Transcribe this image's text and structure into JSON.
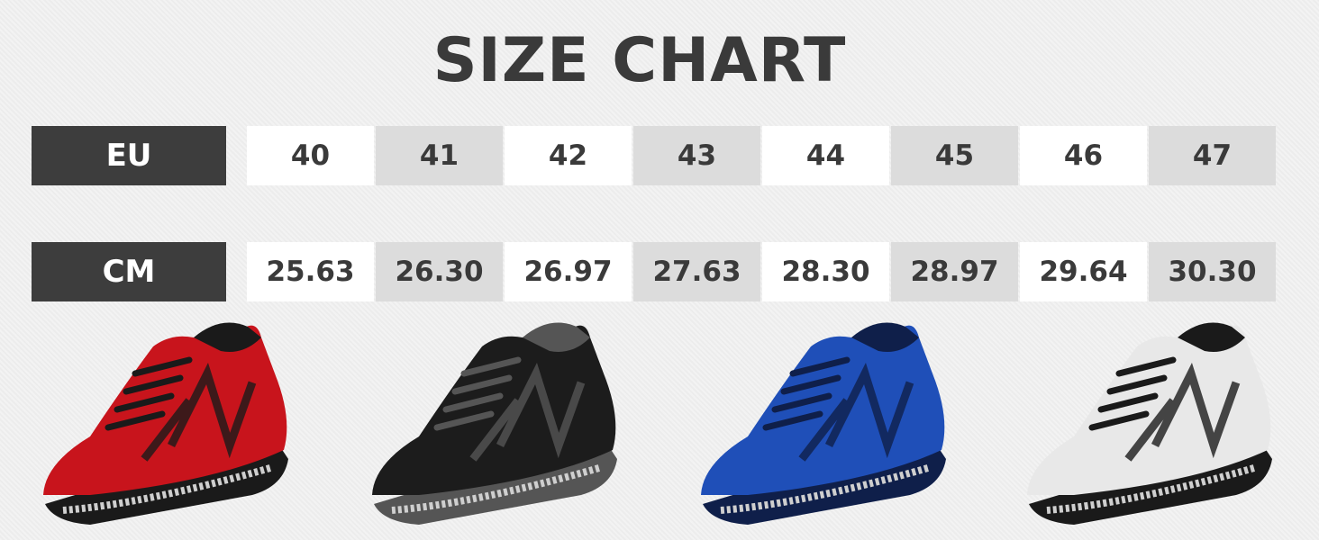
{
  "title": "SIZE CHART",
  "rows": [
    {
      "label": "EU",
      "values": [
        "40",
        "41",
        "42",
        "43",
        "44",
        "45",
        "46",
        "47"
      ]
    },
    {
      "label": "CM",
      "values": [
        "25.63",
        "26.30",
        "26.97",
        "27.63",
        "28.30",
        "28.97",
        "29.64",
        "30.30"
      ]
    }
  ],
  "shoes": [
    {
      "name": "red",
      "color": "#c8141c",
      "accent": "#1a1a1a"
    },
    {
      "name": "black",
      "color": "#1c1c1c",
      "accent": "#555555"
    },
    {
      "name": "blue",
      "color": "#1f4fb8",
      "accent": "#0f1f4a"
    },
    {
      "name": "white",
      "color": "#e8e8e8",
      "accent": "#1a1a1a"
    }
  ],
  "colors": {
    "label_bg": "#3d3d3d",
    "cell_white": "#ffffff",
    "cell_grey": "#dcdcdc",
    "text": "#3a3a3a"
  }
}
